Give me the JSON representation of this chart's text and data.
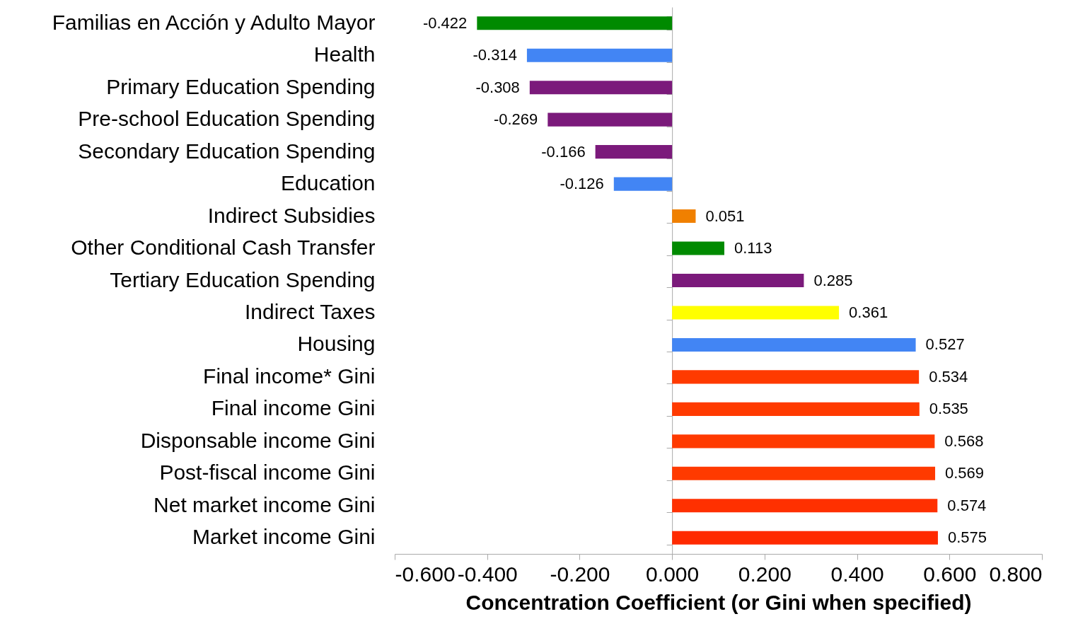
{
  "chart_data": {
    "type": "bar",
    "orientation": "horizontal",
    "xlabel": "Concentration Coefficient (or Gini when specified)",
    "categories": [
      "Familias en Acción y Adulto Mayor",
      "Health",
      "Primary Education Spending",
      "Pre-school Education Spending",
      "Secondary Education Spending",
      "Education",
      "Indirect Subsidies",
      "Other Conditional Cash Transfer",
      "Tertiary Education Spending",
      "Indirect Taxes",
      "Housing",
      "Final income* Gini",
      "Final income Gini",
      "Disponsable income Gini",
      "Post-fiscal income Gini",
      "Net market income Gini",
      "Market income Gini"
    ],
    "values": [
      -0.422,
      -0.314,
      -0.308,
      -0.269,
      -0.166,
      -0.126,
      0.051,
      0.113,
      0.285,
      0.361,
      0.527,
      0.534,
      0.535,
      0.568,
      0.569,
      0.574,
      0.575
    ],
    "colors": [
      "#008a00",
      "#4285f4",
      "#7b1a7b",
      "#7b1a7b",
      "#7b1a7b",
      "#4285f4",
      "#f08000",
      "#008a00",
      "#7b1a7b",
      "#ffff00",
      "#4285f4",
      "#ff3a00",
      "#ff3a00",
      "#ff3a00",
      "#ff3a00",
      "#ff3000",
      "#ff2a00"
    ],
    "xlim": [
      -0.6,
      0.8
    ],
    "xticks": [
      {
        "value": -0.6,
        "label": "-0.600"
      },
      {
        "value": -0.4,
        "label": "-0.400"
      },
      {
        "value": -0.2,
        "label": "-0.200"
      },
      {
        "value": 0,
        "label": "0.000"
      },
      {
        "value": 0.2,
        "label": "0.200"
      },
      {
        "value": 0.4,
        "label": "0.400"
      },
      {
        "value": 0.6,
        "label": "0.600"
      },
      {
        "value": 0.8,
        "label": "0.800"
      }
    ],
    "data_labels": true
  }
}
